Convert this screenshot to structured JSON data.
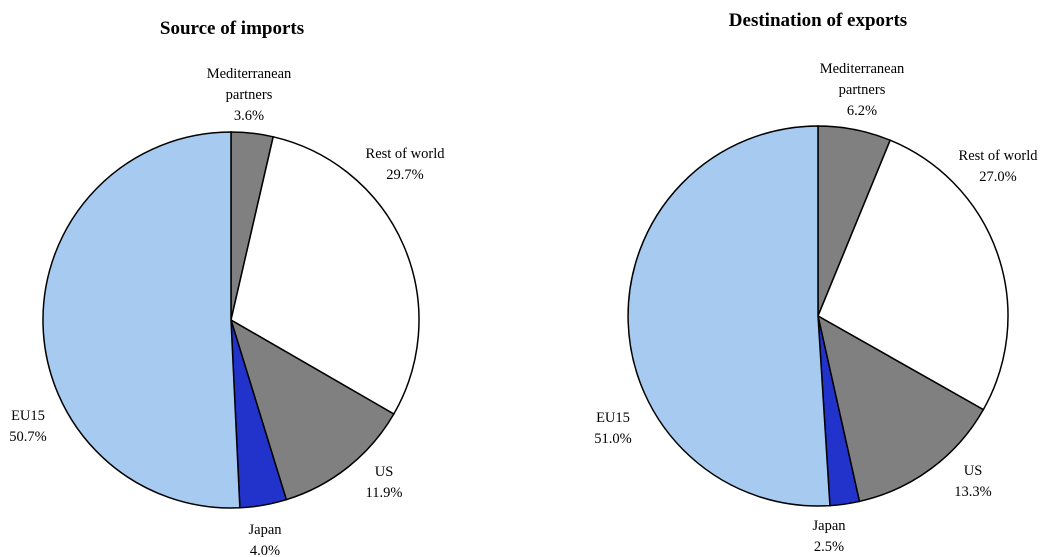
{
  "chart_data": [
    {
      "type": "pie",
      "title": "Source of imports",
      "start": "12 o'clock",
      "direction": "clockwise",
      "slices": [
        {
          "label_lines": [
            "Mediterranean",
            "partners"
          ],
          "value": 3.6,
          "value_text": "3.6%",
          "color": "#808080"
        },
        {
          "label_lines": [
            "Rest of world"
          ],
          "value": 29.7,
          "value_text": "29.7%",
          "color": "#ffffff"
        },
        {
          "label_lines": [
            "US"
          ],
          "value": 11.9,
          "value_text": "11.9%",
          "color": "#808080"
        },
        {
          "label_lines": [
            "Japan"
          ],
          "value": 4.0,
          "value_text": "4.0%",
          "color": "#2233cc"
        },
        {
          "label_lines": [
            "EU15"
          ],
          "value": 50.7,
          "value_text": "50.7%",
          "color": "#a6caf0"
        }
      ]
    },
    {
      "type": "pie",
      "title": "Destination of exports",
      "start": "12 o'clock",
      "direction": "clockwise",
      "slices": [
        {
          "label_lines": [
            "Mediterranean",
            "partners"
          ],
          "value": 6.2,
          "value_text": "6.2%",
          "color": "#808080"
        },
        {
          "label_lines": [
            "Rest of world"
          ],
          "value": 27.0,
          "value_text": "27.0%",
          "color": "#ffffff"
        },
        {
          "label_lines": [
            "US"
          ],
          "value": 13.3,
          "value_text": "13.3%",
          "color": "#808080"
        },
        {
          "label_lines": [
            "Japan"
          ],
          "value": 2.5,
          "value_text": "2.5%",
          "color": "#2233cc"
        },
        {
          "label_lines": [
            "EU15"
          ],
          "value": 51.0,
          "value_text": "51.0%",
          "color": "#a6caf0"
        }
      ]
    }
  ]
}
